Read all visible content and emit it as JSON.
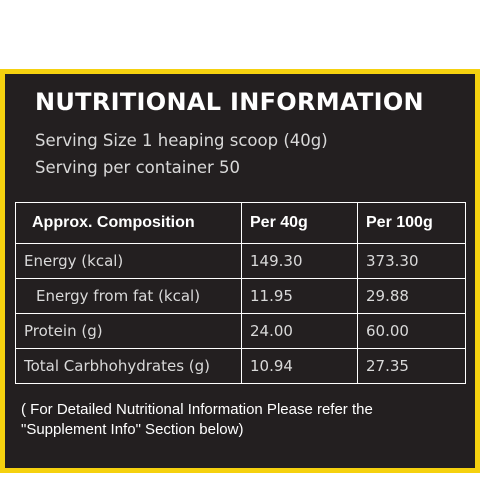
{
  "panel": {
    "title": "NUTRITIONAL INFORMATION",
    "serving_size": "Serving Size 1 heaping scoop (40g)",
    "servings_per_container": "Serving per container 50",
    "colors": {
      "background": "#231f20",
      "border": "#f5d10f"
    }
  },
  "table": {
    "headers": [
      "Approx. Composition",
      "Per 40g",
      "Per 100g"
    ],
    "rows": [
      {
        "name": "Energy (kcal)",
        "per_40g": "149.30",
        "per_100g": "373.30"
      },
      {
        "name": "Energy from fat (kcal)",
        "per_40g": "11.95",
        "per_100g": "29.88"
      },
      {
        "name": "Protein (g)",
        "per_40g": "24.00",
        "per_100g": "60.00"
      },
      {
        "name": "Total Carbhohydrates (g)",
        "per_40g": "10.94",
        "per_100g": "27.35"
      }
    ]
  },
  "note": "( For Detailed Nutritional Information Please refer the \"Supplement Info\" Section below)"
}
